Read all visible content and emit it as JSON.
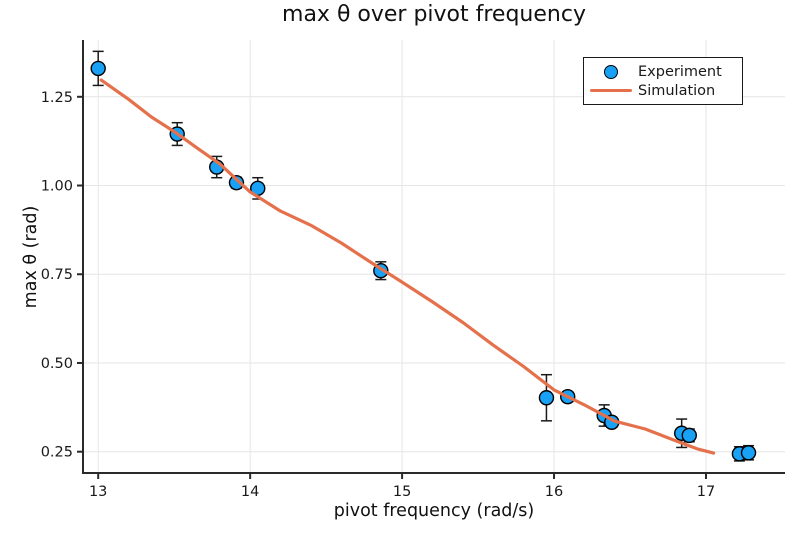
{
  "title": "max θ over pivot frequency",
  "legend": {
    "items": [
      {
        "label": "Experiment",
        "type": "marker"
      },
      {
        "label": "Simulation",
        "type": "line"
      }
    ]
  },
  "colors": {
    "experiment_marker_fill": "#18a1f5",
    "experiment_marker_stroke": "#000000",
    "simulation_line": "#e4714b",
    "error_bar": "#1a1a1a",
    "grid": "#e6e6e6",
    "spine": "#2a2a2a",
    "text": "#191919",
    "background": "#ffffff",
    "legend_border": "#1a1a1a"
  },
  "chart_data": {
    "type": "scatter",
    "title": "max θ over pivot frequency",
    "xlabel": "pivot frequency (rad/s)",
    "ylabel": "max θ (rad)",
    "xlim": [
      12.9,
      17.52
    ],
    "ylim": [
      0.19,
      1.41
    ],
    "xticks": [
      13,
      14,
      15,
      16,
      17
    ],
    "xtick_labels": [
      "13",
      "14",
      "15",
      "16",
      "17"
    ],
    "yticks": [
      0.25,
      0.5,
      0.75,
      1.0,
      1.25
    ],
    "ytick_labels": [
      "0.25",
      "0.50",
      "0.75",
      "1.00",
      "1.25"
    ],
    "grid": true,
    "legend_position": "top-right",
    "series": [
      {
        "name": "Experiment",
        "type": "scatter",
        "marker": "circle",
        "marker_fill": "#18a1f5",
        "marker_stroke": "#000000",
        "error_bars": true,
        "points": [
          {
            "x": 13.0,
            "y": 1.33,
            "err": 0.048
          },
          {
            "x": 13.52,
            "y": 1.145,
            "err": 0.032
          },
          {
            "x": 13.78,
            "y": 1.052,
            "err": 0.03
          },
          {
            "x": 13.91,
            "y": 1.008,
            "err": 0.015
          },
          {
            "x": 14.05,
            "y": 0.992,
            "err": 0.03
          },
          {
            "x": 14.86,
            "y": 0.76,
            "err": 0.025
          },
          {
            "x": 15.95,
            "y": 0.402,
            "err": 0.065
          },
          {
            "x": 16.09,
            "y": 0.405,
            "err": 0.014
          },
          {
            "x": 16.33,
            "y": 0.352,
            "err": 0.03
          },
          {
            "x": 16.38,
            "y": 0.333,
            "err": 0.014
          },
          {
            "x": 16.84,
            "y": 0.302,
            "err": 0.04
          },
          {
            "x": 16.89,
            "y": 0.296,
            "err": 0.018
          },
          {
            "x": 17.22,
            "y": 0.244,
            "err": 0.02
          },
          {
            "x": 17.28,
            "y": 0.247,
            "err": 0.02
          }
        ]
      },
      {
        "name": "Simulation",
        "type": "line",
        "color": "#e4714b",
        "x": [
          13.02,
          13.2,
          13.35,
          13.5,
          13.65,
          13.8,
          14.0,
          14.2,
          14.4,
          14.6,
          14.8,
          15.0,
          15.2,
          15.4,
          15.6,
          15.8,
          16.0,
          16.2,
          16.4,
          16.6,
          16.8,
          16.95,
          17.05
        ],
        "y": [
          1.297,
          1.243,
          1.193,
          1.152,
          1.106,
          1.061,
          0.982,
          0.928,
          0.888,
          0.838,
          0.782,
          0.728,
          0.672,
          0.614,
          0.55,
          0.49,
          0.424,
          0.382,
          0.336,
          0.314,
          0.281,
          0.257,
          0.246
        ]
      }
    ]
  }
}
